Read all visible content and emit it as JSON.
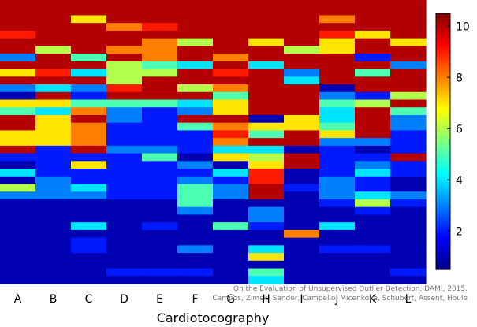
{
  "chart_data": {
    "type": "heatmap",
    "xlabel": "Cardiotocography",
    "categories": [
      "A",
      "B",
      "C",
      "D",
      "E",
      "F",
      "G",
      "H",
      "I",
      "J",
      "K",
      "L"
    ],
    "colorbar": {
      "range": [
        0.5,
        10.5
      ],
      "ticks": [
        2,
        4,
        6,
        8,
        10
      ],
      "colormap": "jet"
    },
    "legend_position": "right",
    "grid": false,
    "values": [
      [
        10,
        10,
        10,
        10,
        10,
        10,
        10,
        10,
        10,
        10,
        10,
        10
      ],
      [
        10,
        10,
        10,
        10,
        10,
        10,
        10,
        10,
        10,
        10,
        10,
        10
      ],
      [
        10,
        10,
        7,
        10,
        10,
        10,
        10,
        10,
        10,
        8,
        10,
        10
      ],
      [
        10,
        10,
        10,
        8,
        9,
        10,
        10,
        10,
        10,
        10,
        10,
        10
      ],
      [
        9,
        10,
        10,
        10,
        10,
        10,
        10,
        10,
        10,
        9,
        7,
        10
      ],
      [
        10,
        10,
        10,
        10,
        8,
        6,
        10,
        7,
        10,
        7,
        10,
        7
      ],
      [
        10,
        6,
        10,
        8,
        8,
        10,
        10,
        10,
        6,
        7,
        10,
        10
      ],
      [
        3,
        10,
        5,
        10,
        8,
        10,
        8,
        10,
        10,
        10,
        2,
        10
      ],
      [
        10,
        10,
        10,
        6,
        5,
        4,
        10,
        4,
        10,
        10,
        10,
        3
      ],
      [
        7,
        9,
        4,
        6,
        6,
        10,
        9,
        10,
        3,
        10,
        5,
        10
      ],
      [
        10,
        10,
        10,
        6,
        10,
        10,
        10,
        10,
        4,
        10,
        10,
        10
      ],
      [
        3,
        4,
        3,
        9,
        10,
        6,
        8,
        10,
        10,
        1,
        10,
        10
      ],
      [
        1,
        10,
        2,
        10,
        10,
        10,
        5,
        10,
        10,
        3,
        2,
        6
      ],
      [
        7,
        7,
        5,
        5,
        5,
        4,
        7,
        10,
        10,
        5,
        6,
        10
      ],
      [
        5,
        4,
        8,
        3,
        2,
        3,
        7,
        10,
        10,
        4,
        10,
        5
      ],
      [
        10,
        7,
        10,
        3,
        2,
        10,
        10,
        1,
        7,
        4,
        10,
        3
      ],
      [
        10,
        7,
        8,
        2,
        2,
        5,
        8,
        7,
        7,
        5,
        10,
        3
      ],
      [
        7,
        7,
        8,
        2,
        2,
        2,
        9,
        5,
        10,
        7,
        10,
        2
      ],
      [
        7,
        7,
        8,
        2,
        2,
        2,
        8,
        10,
        10,
        3,
        3,
        2
      ],
      [
        10,
        2,
        10,
        3,
        3,
        2,
        4,
        4,
        1,
        2,
        1,
        2
      ],
      [
        2,
        2,
        2,
        2,
        5,
        1,
        7,
        6,
        10,
        2,
        2,
        10
      ],
      [
        1,
        2,
        7,
        2,
        2,
        3,
        1,
        7,
        10,
        2,
        3,
        2
      ],
      [
        4,
        2,
        2,
        2,
        2,
        2,
        4,
        9,
        1,
        2,
        4,
        2
      ],
      [
        1,
        3,
        2,
        2,
        2,
        3,
        2,
        9,
        1,
        3,
        2,
        1
      ],
      [
        6,
        3,
        4,
        2,
        2,
        5,
        3,
        10,
        2,
        3,
        2,
        1
      ],
      [
        3,
        3,
        3,
        2,
        2,
        5,
        3,
        10,
        1,
        3,
        4,
        3
      ],
      [
        1,
        1,
        1,
        1,
        1,
        5,
        1,
        1,
        1,
        2,
        6,
        2
      ],
      [
        1,
        1,
        1,
        1,
        1,
        3,
        1,
        3,
        1,
        1,
        2,
        1
      ],
      [
        1,
        1,
        1,
        1,
        1,
        1,
        1,
        3,
        1,
        1,
        1,
        1
      ],
      [
        1,
        1,
        4,
        1,
        2,
        1,
        5,
        2,
        1,
        4,
        1,
        1
      ],
      [
        1,
        1,
        1,
        1,
        1,
        1,
        1,
        1,
        8,
        1,
        1,
        1
      ],
      [
        1,
        1,
        2,
        1,
        1,
        1,
        1,
        1,
        1,
        1,
        1,
        1
      ],
      [
        1,
        1,
        2,
        1,
        1,
        3,
        1,
        4,
        1,
        2,
        2,
        1
      ],
      [
        1,
        1,
        1,
        1,
        1,
        1,
        1,
        7,
        1,
        1,
        1,
        1
      ],
      [
        1,
        1,
        1,
        1,
        1,
        1,
        1,
        1,
        1,
        1,
        1,
        1
      ],
      [
        1,
        1,
        1,
        2,
        2,
        2,
        1,
        5,
        1,
        1,
        1,
        2
      ],
      [
        1,
        1,
        1,
        1,
        1,
        1,
        1,
        4,
        1,
        1,
        1,
        1
      ]
    ]
  },
  "credit": {
    "line1": "On the Evaluation of Unsupervised Outlier Detection. DAMI, 2015.",
    "line2": "Campos, Zimek, Sander, Campello, Micenková, Schubert, Assent, Houle"
  }
}
